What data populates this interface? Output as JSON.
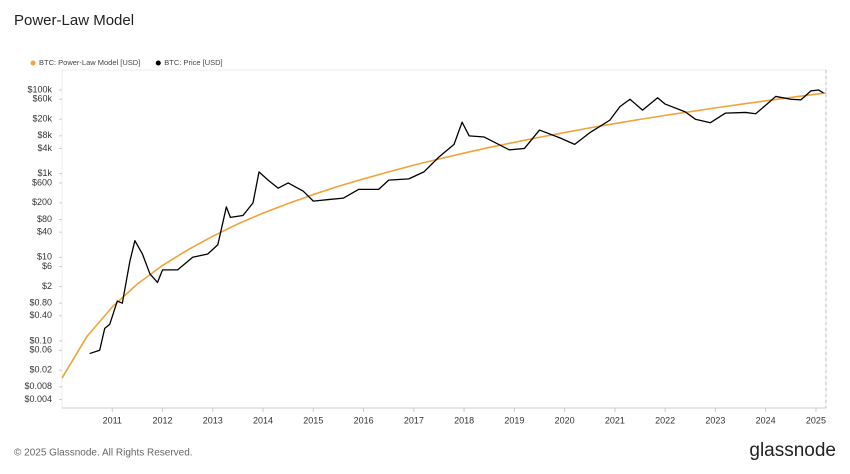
{
  "chart_data": {
    "type": "line",
    "title": "Power-Law Model",
    "footer": "© 2025 Glassnode. All Rights Reserved.",
    "brand": "glassnode",
    "ylog": true,
    "xlim": [
      2010,
      2025.2
    ],
    "ylim": [
      0.0025,
      300000
    ],
    "xticks": [
      2011,
      2012,
      2013,
      2014,
      2015,
      2016,
      2017,
      2018,
      2019,
      2020,
      2021,
      2022,
      2023,
      2024,
      2025
    ],
    "yticks": [
      {
        "value": 0.004,
        "label": "$0.004"
      },
      {
        "value": 0.008,
        "label": "$0.008"
      },
      {
        "value": 0.02,
        "label": "$0.02"
      },
      {
        "value": 0.06,
        "label": "$0.06"
      },
      {
        "value": 0.1,
        "label": "$0.10"
      },
      {
        "value": 0.4,
        "label": "$0.40"
      },
      {
        "value": 0.8,
        "label": "$0.80"
      },
      {
        "value": 2,
        "label": "$2"
      },
      {
        "value": 6,
        "label": "$6"
      },
      {
        "value": 10,
        "label": "$10"
      },
      {
        "value": 40,
        "label": "$40"
      },
      {
        "value": 80,
        "label": "$80"
      },
      {
        "value": 200,
        "label": "$200"
      },
      {
        "value": 600,
        "label": "$600"
      },
      {
        "value": 1000,
        "label": "$1k"
      },
      {
        "value": 4000,
        "label": "$4k"
      },
      {
        "value": 8000,
        "label": "$8k"
      },
      {
        "value": 20000,
        "label": "$20k"
      },
      {
        "value": 60000,
        "label": "$60k"
      },
      {
        "value": 100000,
        "label": "$100k"
      }
    ],
    "series": [
      {
        "name": "BTC: Power-Law Model [USD]",
        "color": "#f2a33a",
        "x": [
          2010,
          2010.5,
          2011,
          2011.5,
          2012,
          2012.5,
          2013,
          2013.5,
          2014,
          2014.5,
          2015,
          2015.5,
          2016,
          2016.5,
          2017,
          2017.5,
          2018,
          2018.5,
          2019,
          2019.5,
          2020,
          2020.5,
          2021,
          2021.5,
          2022,
          2022.5,
          2023,
          2023.5,
          2024,
          2024.5,
          2025,
          2025.2
        ],
        "values": [
          0.013,
          0.13,
          0.65,
          2.3,
          6.4,
          15,
          32,
          63,
          114,
          193,
          316,
          500,
          750,
          1100,
          1600,
          2240,
          3100,
          4230,
          5600,
          7400,
          9600,
          12400,
          15700,
          19800,
          24700,
          30300,
          37300,
          45300,
          55100,
          66100,
          79100,
          85000
        ]
      },
      {
        "name": "BTC: Price [USD]",
        "color": "#000000",
        "x": [
          2010.55,
          2010.75,
          2010.85,
          2010.95,
          2011.1,
          2011.2,
          2011.35,
          2011.45,
          2011.6,
          2011.75,
          2011.9,
          2012.0,
          2012.3,
          2012.6,
          2012.9,
          2013.1,
          2013.27,
          2013.35,
          2013.6,
          2013.8,
          2013.92,
          2014.1,
          2014.3,
          2014.5,
          2014.8,
          2015.0,
          2015.3,
          2015.6,
          2015.9,
          2016.3,
          2016.5,
          2016.9,
          2017.2,
          2017.5,
          2017.8,
          2017.96,
          2018.1,
          2018.4,
          2018.9,
          2019.2,
          2019.5,
          2019.9,
          2020.2,
          2020.5,
          2020.9,
          2021.1,
          2021.3,
          2021.55,
          2021.85,
          2022.0,
          2022.4,
          2022.6,
          2022.9,
          2023.2,
          2023.6,
          2023.8,
          2024.0,
          2024.2,
          2024.5,
          2024.7,
          2024.9,
          2025.05,
          2025.15
        ],
        "values": [
          0.05,
          0.06,
          0.2,
          0.25,
          0.9,
          0.8,
          8,
          25,
          12,
          4,
          2.5,
          5,
          5,
          10,
          12,
          20,
          160,
          90,
          100,
          200,
          1100,
          700,
          450,
          600,
          380,
          220,
          240,
          260,
          420,
          420,
          700,
          750,
          1100,
          2500,
          5000,
          17000,
          8000,
          7500,
          3700,
          4000,
          11000,
          7200,
          5000,
          9500,
          19000,
          40000,
          60000,
          33000,
          65000,
          46000,
          30000,
          20000,
          16500,
          28000,
          29000,
          27000,
          43000,
          70000,
          60000,
          58000,
          95000,
          100000,
          85000
        ]
      }
    ]
  }
}
